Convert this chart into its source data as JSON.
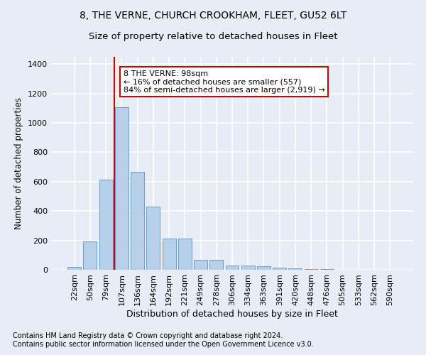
{
  "title": "8, THE VERNE, CHURCH CROOKHAM, FLEET, GU52 6LT",
  "subtitle": "Size of property relative to detached houses in Fleet",
  "xlabel": "Distribution of detached houses by size in Fleet",
  "ylabel": "Number of detached properties",
  "categories": [
    "22sqm",
    "50sqm",
    "79sqm",
    "107sqm",
    "136sqm",
    "164sqm",
    "192sqm",
    "221sqm",
    "249sqm",
    "278sqm",
    "306sqm",
    "334sqm",
    "363sqm",
    "391sqm",
    "420sqm",
    "448sqm",
    "476sqm",
    "505sqm",
    "533sqm",
    "562sqm",
    "590sqm"
  ],
  "values": [
    18,
    195,
    615,
    1105,
    665,
    430,
    215,
    215,
    70,
    70,
    30,
    27,
    22,
    15,
    10,
    5,
    3,
    2,
    1,
    1,
    0
  ],
  "bar_color": "#b8cfe8",
  "bar_edge_color": "#6a9fc8",
  "vline_position": 2.55,
  "vline_color": "#cc0000",
  "annotation_text": "8 THE VERNE: 98sqm\n← 16% of detached houses are smaller (557)\n84% of semi-detached houses are larger (2,919) →",
  "annotation_box_facecolor": "white",
  "annotation_box_edgecolor": "#cc0000",
  "ylim": [
    0,
    1450
  ],
  "yticks": [
    0,
    200,
    400,
    600,
    800,
    1000,
    1200,
    1400
  ],
  "background_color": "#e8edf5",
  "grid_color": "white",
  "footer_text": "Contains HM Land Registry data © Crown copyright and database right 2024.\nContains public sector information licensed under the Open Government Licence v3.0.",
  "title_fontsize": 10,
  "subtitle_fontsize": 9.5,
  "xlabel_fontsize": 9,
  "ylabel_fontsize": 8.5,
  "tick_fontsize": 8,
  "annotation_fontsize": 8,
  "footer_fontsize": 7
}
